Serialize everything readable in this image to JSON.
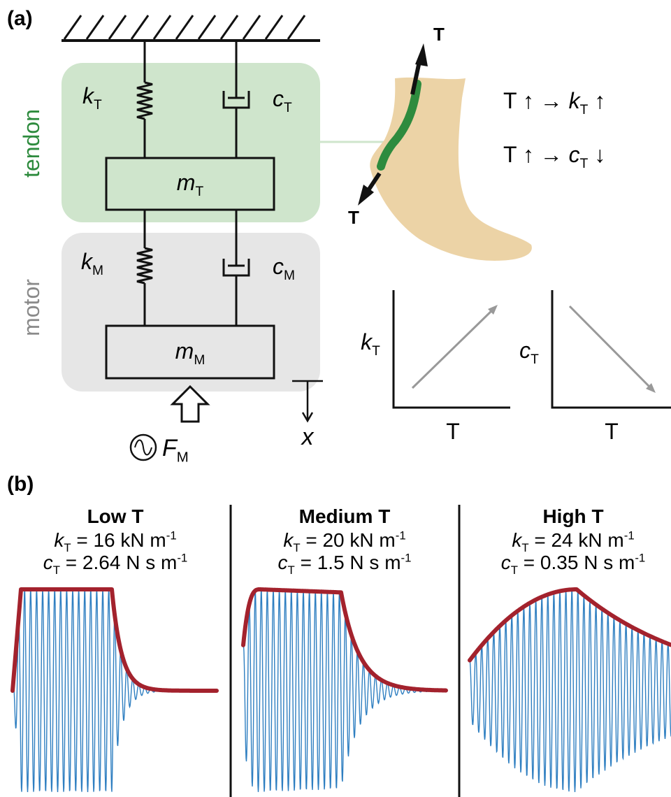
{
  "panel_a": {
    "label": "(a)",
    "tendon_label": "tendon",
    "motor_label": "motor",
    "k_tendon": {
      "symbol": "k",
      "sub": "T"
    },
    "c_tendon": {
      "symbol": "c",
      "sub": "T"
    },
    "m_tendon": {
      "symbol": "m",
      "sub": "T"
    },
    "k_motor": {
      "symbol": "k",
      "sub": "M"
    },
    "c_motor": {
      "symbol": "c",
      "sub": "M"
    },
    "m_motor": {
      "symbol": "m",
      "sub": "M"
    },
    "force": {
      "symbol": "F",
      "sub": "M"
    },
    "displacement": "x",
    "tension_arrows": [
      "T",
      "T"
    ],
    "relations": [
      {
        "pre": "T ↑  →  ",
        "symbol": "k",
        "sub": "T",
        "arrow": " ↑"
      },
      {
        "pre": "T ↑  →  ",
        "symbol": "c",
        "sub": "T",
        "arrow": " ↓"
      }
    ],
    "graphs": [
      {
        "ylabel": {
          "symbol": "k",
          "sub": "T"
        },
        "xlabel": "T"
      },
      {
        "ylabel": {
          "symbol": "c",
          "sub": "T"
        },
        "xlabel": "T"
      }
    ]
  },
  "panel_b": {
    "label": "(b)",
    "conditions": [
      {
        "title": "Low T",
        "k_line": {
          "symbol": "k",
          "sub": "T",
          "text": " = 16 kN m",
          "sup": "-1"
        },
        "c_line": {
          "symbol": "c",
          "sub": "T",
          "text": " = 2.64 N s m",
          "sup": "-1"
        }
      },
      {
        "title": "Medium T",
        "k_line": {
          "symbol": "k",
          "sub": "T",
          "text": " = 20 kN m",
          "sup": "-1"
        },
        "c_line": {
          "symbol": "c",
          "sub": "T",
          "text": " = 1.5 N s m",
          "sup": "-1"
        }
      },
      {
        "title": "High T",
        "k_line": {
          "symbol": "k",
          "sub": "T",
          "text": " = 24 kN m",
          "sup": "-1"
        },
        "c_line": {
          "symbol": "c",
          "sub": "T",
          "text": " = 0.35 N s m",
          "sup": "-1"
        }
      }
    ]
  }
}
